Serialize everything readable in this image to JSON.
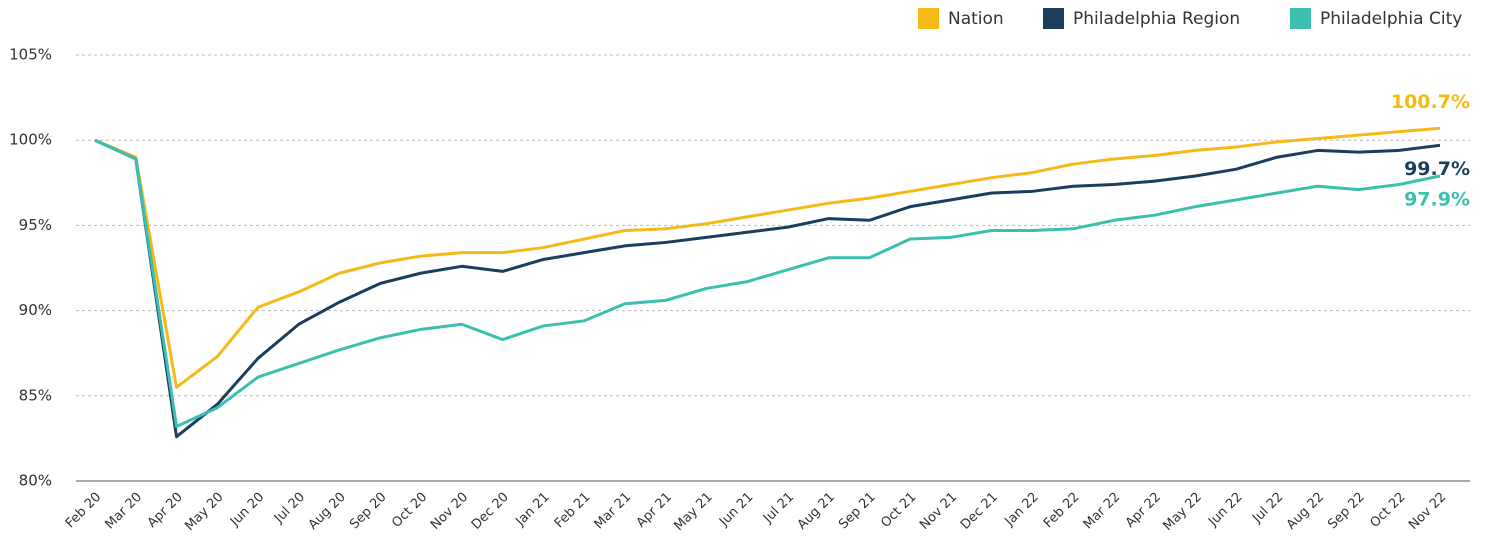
{
  "chart_data": {
    "type": "line",
    "categories": [
      "Feb 20",
      "Mar 20",
      "Apr 20",
      "May 20",
      "Jun 20",
      "Jul 20",
      "Aug 20",
      "Sep 20",
      "Oct 20",
      "Nov 20",
      "Dec 20",
      "Jan 21",
      "Feb 21",
      "Mar 21",
      "Apr 21",
      "May 21",
      "Jun 21",
      "Jul 21",
      "Aug 21",
      "Sep 21",
      "Oct 21",
      "Nov 21",
      "Dec 21",
      "Jan 22",
      "Feb 22",
      "Mar 22",
      "Apr 22",
      "May 22",
      "Jun 22",
      "Jul 22",
      "Aug 22",
      "Sep 22",
      "Oct 22",
      "Nov 22"
    ],
    "series": [
      {
        "name": "Nation",
        "color": "#f5b918",
        "end_label": "100.7%",
        "values": [
          100,
          99.0,
          85.5,
          87.3,
          90.2,
          91.1,
          92.2,
          92.8,
          93.2,
          93.4,
          93.4,
          93.7,
          94.2,
          94.7,
          94.8,
          95.1,
          95.5,
          95.9,
          96.3,
          96.6,
          97.0,
          97.4,
          97.8,
          98.1,
          98.6,
          98.9,
          99.1,
          99.4,
          99.6,
          99.9,
          100.1,
          100.3,
          100.5,
          100.7
        ]
      },
      {
        "name": "Philadelphia Region",
        "color": "#1b3d5e",
        "end_label": "99.7%",
        "values": [
          100,
          98.9,
          82.6,
          84.5,
          87.2,
          89.2,
          90.5,
          91.6,
          92.2,
          92.6,
          92.3,
          93.0,
          93.4,
          93.8,
          94.0,
          94.3,
          94.6,
          94.9,
          95.4,
          95.3,
          96.1,
          96.5,
          96.9,
          97.0,
          97.3,
          97.4,
          97.6,
          97.9,
          98.3,
          99.0,
          99.4,
          99.3,
          99.4,
          99.7
        ]
      },
      {
        "name": "Philadelphia City",
        "color": "#3bbfb0",
        "end_label": "97.9%",
        "values": [
          100,
          98.9,
          83.2,
          84.3,
          86.1,
          86.9,
          87.7,
          88.4,
          88.9,
          89.2,
          88.3,
          89.1,
          89.4,
          90.4,
          90.6,
          91.3,
          91.7,
          92.4,
          93.1,
          93.1,
          94.2,
          94.3,
          94.7,
          94.7,
          94.8,
          95.3,
          95.6,
          96.1,
          96.5,
          96.9,
          97.3,
          97.1,
          97.4,
          97.9
        ]
      }
    ],
    "ylim": [
      80,
      105
    ],
    "yticks": [
      {
        "value": 80,
        "label": "80%"
      },
      {
        "value": 85,
        "label": "85%"
      },
      {
        "value": 90,
        "label": "90%"
      },
      {
        "value": 95,
        "label": "95%"
      },
      {
        "value": 100,
        "label": "100%"
      },
      {
        "value": 105,
        "label": "105%"
      }
    ],
    "grid": true,
    "legend": "top-right"
  }
}
